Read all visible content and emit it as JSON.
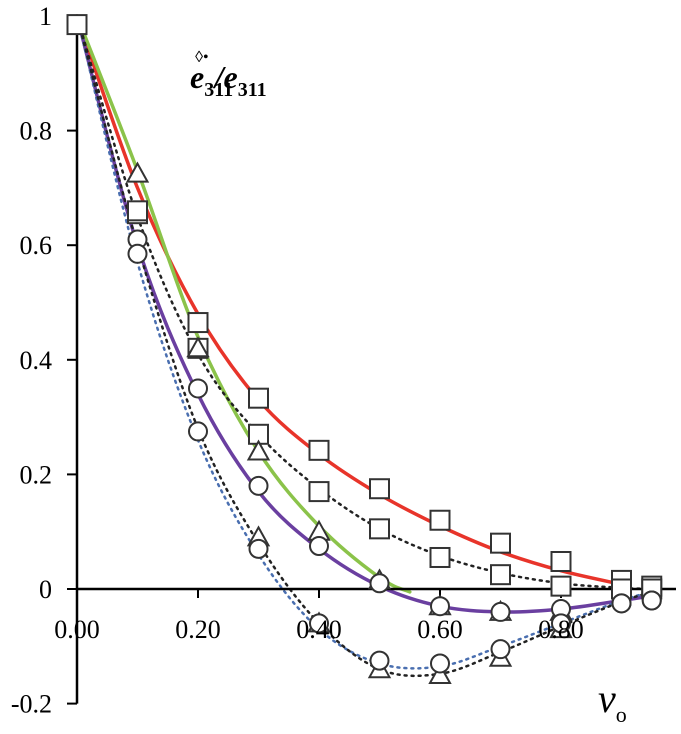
{
  "chart_data": {
    "type": "line",
    "title": {
      "numerator": "e",
      "numerator_sub": "311",
      "numerator_sup": "◊•",
      "slash": "/",
      "denominator": "e",
      "denominator_sub": "311"
    },
    "xlabel": {
      "main": "v",
      "sub": "o"
    },
    "ylabel": "",
    "xlim": [
      0,
      0.95
    ],
    "ylim": [
      -0.2,
      1.0
    ],
    "x_ticks": [
      0.0,
      0.2,
      0.4,
      0.6,
      0.8
    ],
    "x_tick_labels": [
      "0.00",
      "0.20",
      "0.40",
      "0.60",
      "0.80"
    ],
    "y_ticks": [
      -0.2,
      0,
      0.2,
      0.4,
      0.6,
      0.8,
      1.0
    ],
    "y_tick_labels": [
      "-0.2",
      "0",
      "0.2",
      "0.4",
      "0.6",
      "0.8",
      "1"
    ],
    "grid": false,
    "series": [
      {
        "kind": "curve",
        "color": "#e8342a",
        "style": "solid",
        "x": [
          0.0,
          0.1,
          0.2,
          0.3,
          0.4,
          0.5,
          0.6,
          0.7,
          0.8,
          0.9
        ],
        "y": [
          1.0,
          0.7,
          0.48,
          0.33,
          0.235,
          0.165,
          0.11,
          0.065,
          0.032,
          0.008
        ]
      },
      {
        "kind": "curve",
        "color": "#8bc34a",
        "style": "solid",
        "x": [
          0.0,
          0.1,
          0.2,
          0.3,
          0.4,
          0.5,
          0.55
        ],
        "y": [
          1.0,
          0.73,
          0.44,
          0.24,
          0.11,
          0.02,
          -0.005
        ]
      },
      {
        "kind": "curve",
        "color": "#6a3fa0",
        "style": "solid",
        "x": [
          0.0,
          0.1,
          0.2,
          0.3,
          0.4,
          0.5,
          0.6,
          0.7,
          0.8,
          0.9,
          0.95
        ],
        "y": [
          1.0,
          0.6,
          0.34,
          0.17,
          0.07,
          0.005,
          -0.03,
          -0.04,
          -0.035,
          -0.02,
          -0.012
        ]
      },
      {
        "kind": "curve",
        "color": "#222222",
        "style": "dotted",
        "x": [
          0.0,
          0.1,
          0.2,
          0.3,
          0.4,
          0.5,
          0.6,
          0.7,
          0.8,
          0.9,
          0.95
        ],
        "y": [
          1.0,
          0.65,
          0.41,
          0.27,
          0.175,
          0.105,
          0.058,
          0.028,
          0.01,
          0.002,
          0.0
        ]
      },
      {
        "kind": "curve",
        "color": "#4a6fb0",
        "style": "dotted",
        "x": [
          0.0,
          0.1,
          0.2,
          0.3,
          0.4,
          0.5,
          0.6,
          0.7,
          0.8,
          0.9,
          0.95
        ],
        "y": [
          1.0,
          0.57,
          0.26,
          0.06,
          -0.07,
          -0.13,
          -0.135,
          -0.1,
          -0.06,
          -0.02,
          -0.005
        ]
      },
      {
        "kind": "curve",
        "color": "#222222",
        "style": "dotted",
        "x": [
          0.0,
          0.1,
          0.2,
          0.3,
          0.4,
          0.5,
          0.6,
          0.7,
          0.8,
          0.9,
          0.95
        ],
        "y": [
          1.0,
          0.6,
          0.28,
          0.08,
          -0.06,
          -0.14,
          -0.148,
          -0.11,
          -0.065,
          -0.022,
          -0.005
        ]
      },
      {
        "kind": "markers",
        "marker": "square",
        "x": [
          0.0,
          0.1,
          0.2,
          0.3,
          0.4,
          0.5,
          0.6,
          0.7,
          0.8,
          0.9,
          0.95
        ],
        "y": [
          0.985,
          0.655,
          0.465,
          0.333,
          0.242,
          0.175,
          0.12,
          0.08,
          0.048,
          0.015,
          0.005
        ]
      },
      {
        "kind": "markers",
        "marker": "square",
        "x": [
          0.1,
          0.2,
          0.3,
          0.4,
          0.5,
          0.6,
          0.7,
          0.8,
          0.9,
          0.95
        ],
        "y": [
          0.66,
          0.42,
          0.27,
          0.17,
          0.105,
          0.055,
          0.025,
          0.005,
          0.0,
          0.0
        ]
      },
      {
        "kind": "markers",
        "marker": "triangle",
        "x": [
          0.1,
          0.2,
          0.3,
          0.4,
          0.5,
          0.6,
          0.7,
          0.8
        ],
        "y": [
          0.725,
          0.42,
          0.24,
          0.1,
          0.015,
          -0.03,
          -0.04,
          -0.04
        ]
      },
      {
        "kind": "markers",
        "marker": "triangle",
        "x": [
          0.3,
          0.4,
          0.5,
          0.6,
          0.7,
          0.8
        ],
        "y": [
          0.09,
          -0.06,
          -0.14,
          -0.15,
          -0.12,
          -0.07
        ]
      },
      {
        "kind": "markers",
        "marker": "circle",
        "x": [
          0.1,
          0.2,
          0.3,
          0.4,
          0.5,
          0.6,
          0.7,
          0.8,
          0.9,
          0.95
        ],
        "y": [
          0.61,
          0.35,
          0.18,
          0.075,
          0.01,
          -0.03,
          -0.04,
          -0.035,
          -0.025,
          -0.02
        ]
      },
      {
        "kind": "markers",
        "marker": "circle",
        "x": [
          0.1,
          0.2,
          0.3,
          0.4,
          0.5,
          0.6,
          0.7,
          0.8,
          0.9,
          0.95
        ],
        "y": [
          0.585,
          0.275,
          0.07,
          -0.06,
          -0.125,
          -0.13,
          -0.105,
          -0.06,
          -0.025,
          -0.02
        ]
      }
    ]
  }
}
